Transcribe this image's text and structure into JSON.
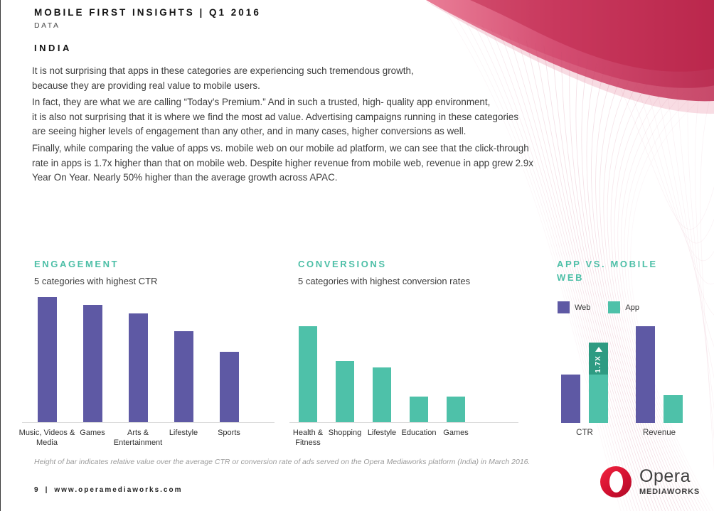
{
  "page": {
    "header_title": "MOBILE FIRST INSIGHTS | Q1 2016",
    "header_subtitle": "DATA",
    "section_title": "INDIA",
    "paragraph1": [
      "It is not surprising that apps in these categories are experiencing such tremendous growth,",
      "because they are providing real value to mobile users."
    ],
    "paragraph2": [
      "In fact, they are what we are calling “Today’s Premium.” And in such a trusted, high- quality app environment,",
      "it is also not surprising that it is where we find the most ad value. Advertising campaigns running in these categories",
      "are seeing higher levels of engagement than any other, and in many cases, higher conversions as well."
    ],
    "paragraph3": [
      "Finally, while comparing the value of apps vs. mobile web on our mobile ad platform, we can see that the click-through",
      "rate in apps is 1.7x higher than that on mobile web. Despite higher revenue from mobile web, revenue in app grew 2.9x",
      "Year On Year. Nearly 50% higher than the average growth across APAC."
    ],
    "footnote": "Height of bar indicates relative value over the average CTR or conversion rate of ads served on the Opera Mediaworks platform (India) in March 2016.",
    "footer": {
      "page_number": "9",
      "separator": "|",
      "url": "www.operamediaworks.com"
    },
    "logo": {
      "brand": "Opera",
      "unit": "MEDIAWORKS"
    }
  },
  "colors": {
    "purple": "#5E59A4",
    "teal": "#4EC1A9",
    "teal_dark": "#2E9B82",
    "heading_teal": "#4DBFA7",
    "opera_red": "#D21031",
    "wave_crimson": "#B51F46",
    "wave_pink": "#C2486D",
    "axis_gray": "#DCDCDC"
  },
  "chart_data": [
    {
      "id": "engagement",
      "type": "bar",
      "title": "ENGAGEMENT",
      "subtitle": "5 categories with highest CTR",
      "categories": [
        "Music, Videos & Media",
        "Games",
        "Arts & Entertainment",
        "Lifestyle",
        "Sports"
      ],
      "values": [
        1.0,
        0.94,
        0.87,
        0.73,
        0.56
      ],
      "ylabel": "Relative CTR vs. platform average (no numeric axis shown)",
      "bar_color": "#5E59A4",
      "grid": false,
      "value_axis_shown": false
    },
    {
      "id": "conversions",
      "type": "bar",
      "title": "CONVERSIONS",
      "subtitle": "5 categories with highest conversion rates",
      "categories": [
        "Health & Fitness",
        "Shopping",
        "Lifestyle",
        "Education",
        "Games"
      ],
      "values": [
        1.0,
        0.64,
        0.57,
        0.27,
        0.27
      ],
      "ylabel": "Relative conversion rate vs. platform average (no numeric axis shown)",
      "bar_color": "#4EC1A9",
      "grid": false,
      "value_axis_shown": false
    },
    {
      "id": "app-vs-web",
      "type": "grouped-bar",
      "title": "APP VS. MOBILE WEB",
      "legend": [
        {
          "label": "Web",
          "color": "#5E59A4"
        },
        {
          "label": "App",
          "color": "#4EC1A9"
        }
      ],
      "categories": [
        "CTR",
        "Revenue"
      ],
      "series": [
        {
          "name": "Web",
          "values": [
            0.5,
            1.0
          ]
        },
        {
          "name": "App",
          "values": [
            0.83,
            0.29
          ]
        }
      ],
      "annotation": {
        "text": "1.7X",
        "arrow": "up",
        "category": "CTR",
        "series": "App",
        "segment_color": "#2E9B82",
        "meaning": "click-through rate in apps is 1.7x higher than on mobile web"
      },
      "grid": false,
      "value_axis_shown": false
    }
  ]
}
